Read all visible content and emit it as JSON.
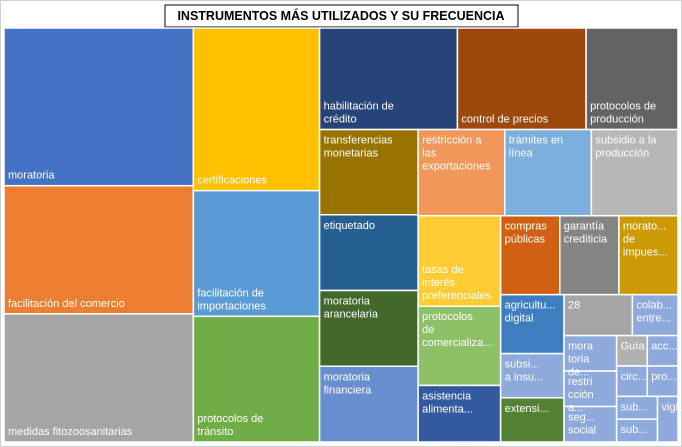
{
  "chart_data": {
    "type": "treemap",
    "title": "INSTRUMENTOS MÁS UTILIZADOS Y SU FRECUENCIA",
    "categories": [
      "moratoria",
      "facilitación del comercio",
      "medidas fitozoosanitarias",
      "certificaciones",
      "facilitación de importaciones",
      "protocolos de tránsito",
      "habilitación de crédito",
      "control de precios",
      "protocolos de producción",
      "transferencias monetarias",
      "etiquetado",
      "moratoria arancelaria",
      "moratoria financiera",
      "restricción a las exportaciones",
      "trámites en línea",
      "subsidio a la producción",
      "tasas de interés preferenciales",
      "protocolos de comercializa...",
      "asistencia alimenta...",
      "compras públicas",
      "garantía crediticia",
      "morato... de impues...",
      "agricultu... digital",
      "subsi... a insu...",
      "extensi...",
      "28",
      "colab... entre...",
      "mora toria de...",
      "restri cción a...",
      "seg... social",
      "Guía",
      "acc...",
      "circ...",
      "pro...",
      "sub...",
      "sub...",
      "vigil..."
    ],
    "values": [
      32,
      26,
      26,
      22,
      17,
      17,
      15,
      14,
      10,
      9,
      8,
      8,
      8,
      8,
      8,
      8,
      8,
      7,
      5,
      5,
      5,
      5,
      4,
      3,
      3,
      3,
      2,
      2,
      2,
      2,
      1,
      1,
      1,
      1,
      1,
      1,
      1
    ],
    "colors": [
      "#4472c4",
      "#ed7d31",
      "#a5a5a5",
      "#ffc000",
      "#5b9bd5",
      "#70ad47",
      "#264478",
      "#9e480e",
      "#636363",
      "#997300",
      "#255e91",
      "#43682b",
      "#698ed0",
      "#f1975a",
      "#7cafdd",
      "#b7b7b7",
      "#ffcd33",
      "#8cc168",
      "#335aa1",
      "#d26012",
      "#848484",
      "#cc9a06",
      "#3e7dc0",
      "#8ea9db",
      "#548235",
      "#a5a5a5",
      "#8ea9db",
      "#8ea9db",
      "#8ea9db",
      "#8ea9db",
      "#b0b0b0",
      "#8ea9db",
      "#8ea9db",
      "#8ea9db",
      "#8ea9db",
      "#8ea9db",
      "#8ea9db"
    ]
  }
}
